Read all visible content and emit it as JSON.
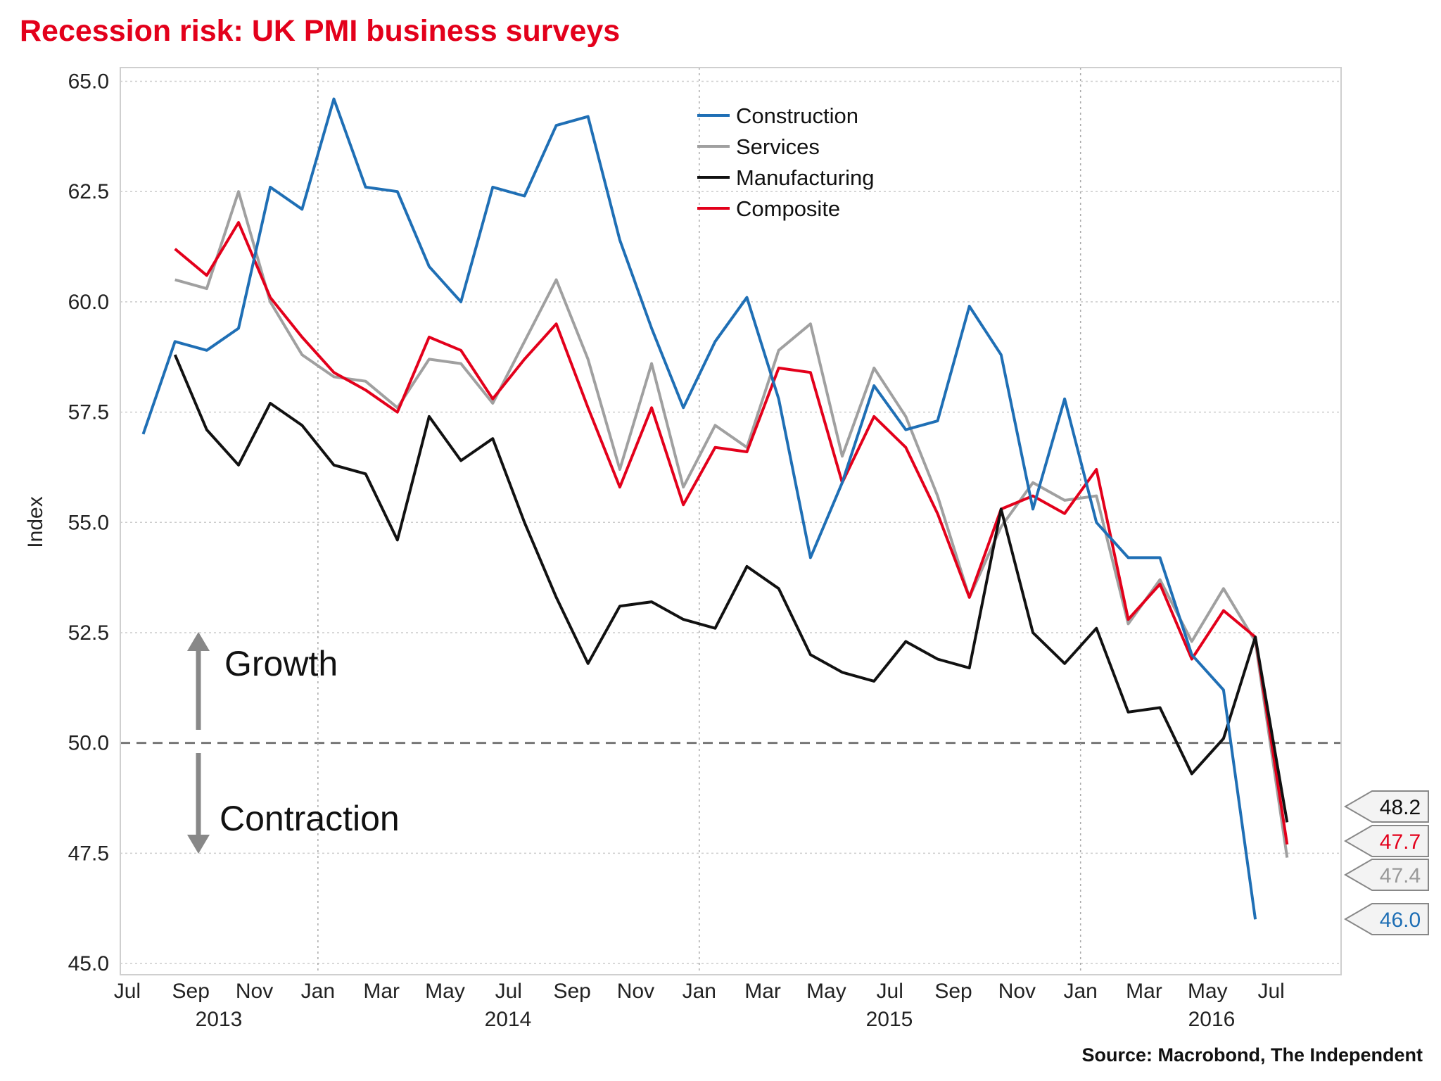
{
  "chart_data": {
    "type": "line",
    "title": "Recession risk: UK PMI business surveys",
    "ylabel": "Index",
    "xlabel": "",
    "ylim": [
      45.0,
      65.0
    ],
    "yticks": [
      "45.0",
      "47.5",
      "50.0",
      "52.5",
      "55.0",
      "57.5",
      "60.0",
      "62.5",
      "65.0"
    ],
    "xticks": [
      "Jul",
      "Sep",
      "Nov",
      "Jan",
      "Mar",
      "May",
      "Jul",
      "Sep",
      "Nov",
      "Jan",
      "Mar",
      "May",
      "Jul",
      "Sep",
      "Nov",
      "Jan",
      "Mar",
      "May",
      "Jul"
    ],
    "year_labels": [
      "2013",
      "2014",
      "2015",
      "2016"
    ],
    "x_range": [
      "Jul 2013",
      "Jul 2016"
    ],
    "grid": true,
    "legend_position": "top-center",
    "reference_line": {
      "value": 50.0,
      "style": "dashed"
    },
    "annotations": {
      "growth": "Growth",
      "contraction": "Contraction"
    },
    "source": "Source: Macrobond, The Independent",
    "series": [
      {
        "name": "Construction",
        "color": "#1f6fb5",
        "start": "Jul 2013",
        "end_label": "46.0",
        "values": [
          57.0,
          59.1,
          58.9,
          59.4,
          62.6,
          62.1,
          64.6,
          62.6,
          62.5,
          60.8,
          60.0,
          62.6,
          62.4,
          64.0,
          64.2,
          61.4,
          59.4,
          57.6,
          59.1,
          60.1,
          57.8,
          54.2,
          55.9,
          58.1,
          57.1,
          57.3,
          59.9,
          58.8,
          55.3,
          57.8,
          55.0,
          54.2,
          54.2,
          52.0,
          51.2,
          46.0
        ]
      },
      {
        "name": "Services",
        "color": "#a0a0a0",
        "start": "Aug 2013",
        "end_label": "47.4",
        "values": [
          60.5,
          60.3,
          62.5,
          60.0,
          58.8,
          58.3,
          58.2,
          57.6,
          58.7,
          58.6,
          57.7,
          59.1,
          60.5,
          58.7,
          56.2,
          58.6,
          55.8,
          57.2,
          56.7,
          58.9,
          59.5,
          56.5,
          58.5,
          57.4,
          55.6,
          53.3,
          54.9,
          55.9,
          55.5,
          55.6,
          52.7,
          53.7,
          52.3,
          53.5,
          52.3,
          47.4
        ]
      },
      {
        "name": "Manufacturing",
        "color": "#111111",
        "start": "Aug 2013",
        "end_label": "48.2",
        "values": [
          58.8,
          57.1,
          56.3,
          57.7,
          57.2,
          56.3,
          56.1,
          54.6,
          57.4,
          56.4,
          56.9,
          55.0,
          53.3,
          51.8,
          53.1,
          53.2,
          52.8,
          52.6,
          54.0,
          53.5,
          52.0,
          51.6,
          51.4,
          52.3,
          51.9,
          51.7,
          55.3,
          52.5,
          51.8,
          52.6,
          50.7,
          50.8,
          49.3,
          50.1,
          52.4,
          48.2
        ]
      },
      {
        "name": "Composite",
        "color": "#e3001b",
        "start": "Aug 2013",
        "end_label": "47.7",
        "values": [
          61.2,
          60.6,
          61.8,
          60.1,
          59.2,
          58.4,
          58.0,
          57.5,
          59.2,
          58.9,
          57.8,
          58.7,
          59.5,
          57.6,
          55.8,
          57.6,
          55.4,
          56.7,
          56.6,
          58.5,
          58.4,
          55.9,
          57.4,
          56.7,
          55.2,
          53.3,
          55.3,
          55.6,
          55.2,
          56.2,
          52.8,
          53.6,
          51.9,
          53.0,
          52.4,
          47.7
        ]
      }
    ]
  }
}
